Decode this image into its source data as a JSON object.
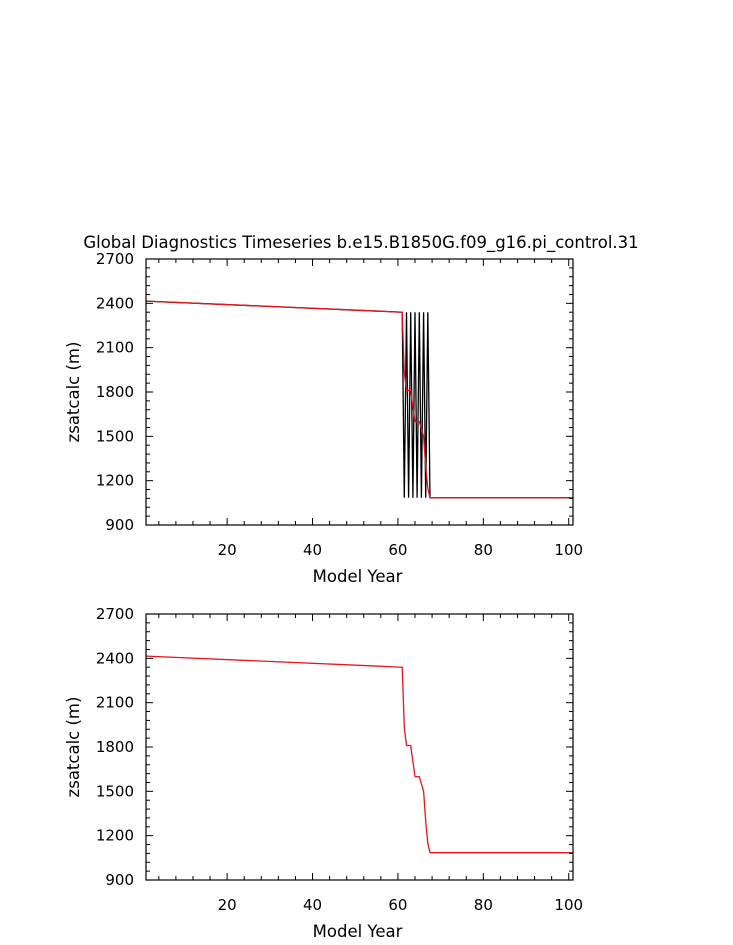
{
  "title": "Global Diagnostics Timeseries b.e15.B1850G.f09_g16.pi_control.31",
  "colors": {
    "annual": "#000000",
    "running_mean": "#e8141c"
  },
  "chart_data": [
    {
      "type": "line",
      "xlabel": "Model Year",
      "ylabel": "zsatcalc (m)",
      "xlim": [
        1,
        101
      ],
      "ylim": [
        900,
        2700
      ],
      "xticks": [
        20,
        40,
        60,
        80,
        100
      ],
      "yticks": [
        900,
        1200,
        1500,
        1800,
        2100,
        2400,
        2700
      ],
      "grid": false,
      "series": [
        {
          "color": "#000000",
          "x": [
            1,
            61,
            61.5,
            62,
            62.5,
            63,
            63.5,
            64,
            64.5,
            65,
            65.5,
            66,
            66.5,
            67,
            67.5,
            101
          ],
          "y": [
            2415,
            2340,
            1085,
            2340,
            1085,
            2340,
            1085,
            2340,
            1085,
            2340,
            1085,
            2340,
            1085,
            2340,
            1085,
            1085
          ]
        },
        {
          "color": "#e8141c",
          "x": [
            1,
            61,
            61.5,
            62,
            63,
            64,
            65,
            66,
            66.5,
            67,
            67.5,
            101
          ],
          "y": [
            2415,
            2340,
            1930,
            1810,
            1810,
            1600,
            1600,
            1500,
            1300,
            1150,
            1085,
            1085
          ]
        }
      ]
    },
    {
      "type": "line",
      "xlabel": "Model Year",
      "ylabel": "zsatcalc (m)",
      "xlim": [
        1,
        101
      ],
      "ylim": [
        900,
        2700
      ],
      "xticks": [
        20,
        40,
        60,
        80,
        100
      ],
      "yticks": [
        900,
        1200,
        1500,
        1800,
        2100,
        2400,
        2700
      ],
      "grid": false,
      "series": [
        {
          "color": "#e8141c",
          "x": [
            1,
            61,
            61.5,
            62,
            63,
            64,
            65,
            66,
            66.5,
            67,
            67.5,
            101
          ],
          "y": [
            2415,
            2340,
            1930,
            1810,
            1810,
            1600,
            1600,
            1500,
            1300,
            1150,
            1085,
            1085
          ]
        }
      ]
    }
  ]
}
